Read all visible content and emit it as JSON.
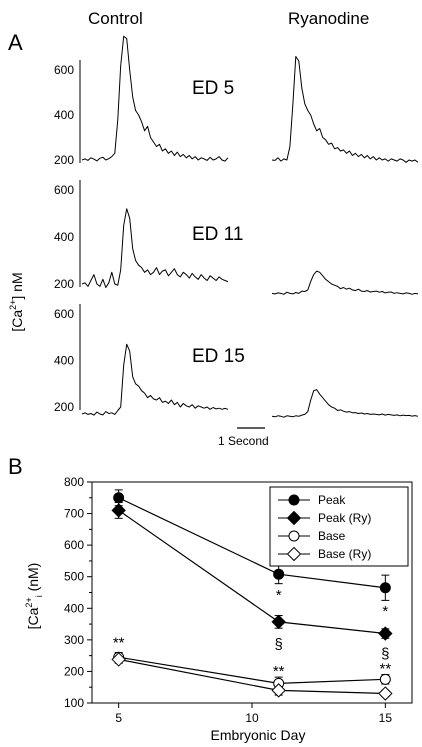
{
  "panel_a": {
    "letter": "A",
    "columns": [
      "Control",
      "Ryanodine"
    ],
    "y_label": "[Ca",
    "y_label_sup": "2+",
    "y_label_tail": "] nM",
    "scale_bar_label": "1 Second",
    "rows": [
      {
        "label": "ED 5",
        "yticks": [
          "200",
          "400",
          "600"
        ],
        "ylim": [
          200,
          600
        ],
        "control": [
          200,
          205,
          198,
          210,
          204,
          196,
          208,
          212,
          200,
          206,
          215,
          230,
          380,
          620,
          750,
          740,
          600,
          480,
          420,
          400,
          370,
          330,
          350,
          300,
          280,
          260,
          270,
          240,
          250,
          230,
          240,
          220,
          235,
          215,
          225,
          210,
          220,
          205,
          215,
          200,
          210,
          205,
          198,
          212,
          200,
          205,
          215,
          200,
          195,
          210
        ],
        "ryanodine": [
          200,
          198,
          210,
          195,
          205,
          200,
          260,
          450,
          660,
          640,
          520,
          450,
          420,
          400,
          360,
          330,
          340,
          300,
          290,
          270,
          275,
          250,
          255,
          240,
          245,
          230,
          240,
          220,
          230,
          215,
          225,
          210,
          220,
          205,
          215,
          200,
          210,
          200,
          205,
          195,
          205,
          200,
          195,
          205,
          200,
          190,
          200,
          195,
          200,
          190
        ]
      },
      {
        "label": "ED 11",
        "yticks": [
          "200",
          "400",
          "600"
        ],
        "ylim": [
          200,
          600
        ],
        "control": [
          200,
          205,
          190,
          215,
          240,
          200,
          190,
          220,
          185,
          205,
          250,
          200,
          195,
          260,
          450,
          520,
          480,
          350,
          300,
          280,
          270,
          250,
          260,
          240,
          250,
          270,
          240,
          255,
          260,
          235,
          250,
          265,
          240,
          230,
          250,
          240,
          225,
          245,
          230,
          220,
          240,
          225,
          215,
          235,
          225,
          215,
          230,
          220,
          215,
          210
        ],
        "ryanodine": [
          160,
          158,
          162,
          160,
          156,
          165,
          160,
          158,
          164,
          160,
          170,
          168,
          175,
          210,
          240,
          255,
          250,
          235,
          220,
          210,
          200,
          195,
          190,
          180,
          185,
          178,
          182,
          175,
          172,
          178,
          170,
          168,
          172,
          166,
          168,
          170,
          165,
          168,
          162,
          165,
          166,
          160,
          163,
          160,
          158,
          162,
          160,
          156,
          160,
          158
        ]
      },
      {
        "label": "ED 15",
        "yticks": [
          "200",
          "400",
          "600"
        ],
        "ylim": [
          200,
          600
        ],
        "control": [
          170,
          175,
          168,
          172,
          165,
          178,
          170,
          166,
          180,
          172,
          175,
          168,
          185,
          200,
          380,
          470,
          440,
          330,
          300,
          290,
          270,
          260,
          240,
          250,
          235,
          230,
          240,
          220,
          225,
          215,
          230,
          210,
          220,
          200,
          215,
          205,
          200,
          210,
          195,
          205,
          200,
          195,
          200,
          190,
          198,
          192,
          195,
          190,
          194,
          190
        ],
        "ryanodine": [
          160,
          158,
          162,
          160,
          156,
          162,
          160,
          158,
          162,
          160,
          165,
          168,
          180,
          230,
          270,
          275,
          255,
          240,
          225,
          210,
          200,
          195,
          185,
          188,
          182,
          178,
          180,
          175,
          176,
          172,
          174,
          170,
          172,
          168,
          170,
          168,
          166,
          170,
          165,
          168,
          166,
          164,
          166,
          162,
          165,
          163,
          164,
          161,
          163,
          160
        ]
      }
    ]
  },
  "chart_data": {
    "type": "line",
    "panel_letter": "B",
    "title": "",
    "xlabel": "Embryonic Day",
    "ylabel": "[Ca",
    "ylabel_sup": "2+",
    "ylabel_sub": "i",
    "ylabel_tail": " (nM)",
    "x": [
      5,
      11,
      15
    ],
    "xticks": [
      "5",
      "10",
      "15"
    ],
    "xtick_values": [
      5,
      10,
      15
    ],
    "xlim": [
      4,
      16
    ],
    "ylim": [
      100,
      800
    ],
    "yticks": [
      100,
      200,
      300,
      400,
      500,
      600,
      700,
      800
    ],
    "legend_position": "top-right",
    "series": [
      {
        "name": "Peak",
        "marker": "circle",
        "filled": true,
        "values": [
          750,
          508,
          465
        ],
        "err": [
          25,
          30,
          40
        ]
      },
      {
        "name": "Peak (Ry)",
        "marker": "diamond",
        "filled": true,
        "values": [
          710,
          357,
          320
        ],
        "err": [
          25,
          20,
          15
        ]
      },
      {
        "name": "Base",
        "marker": "circle",
        "filled": false,
        "values": [
          245,
          162,
          175
        ],
        "err": [
          15,
          20,
          15
        ]
      },
      {
        "name": "Base (Ry)",
        "marker": "diamond",
        "filled": false,
        "values": [
          238,
          140,
          130
        ],
        "err": [
          12,
          15,
          10
        ]
      }
    ],
    "annotations": [
      {
        "text": "**",
        "x": 5,
        "y": 295
      },
      {
        "text": "**",
        "x": 11,
        "y": 205
      },
      {
        "text": "**",
        "x": 15,
        "y": 212
      },
      {
        "text": "*",
        "x": 11,
        "y": 445
      },
      {
        "text": "*",
        "x": 15,
        "y": 395
      },
      {
        "text": "§",
        "x": 11,
        "y": 290
      },
      {
        "text": "§",
        "x": 15,
        "y": 260
      }
    ]
  }
}
